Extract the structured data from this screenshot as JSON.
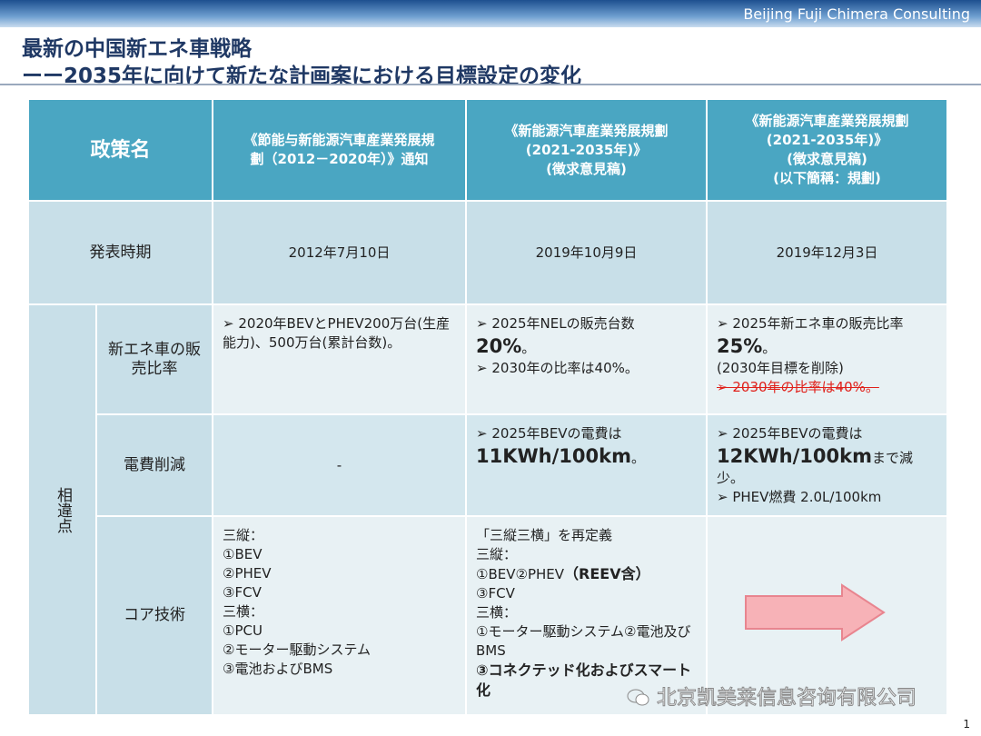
{
  "header": {
    "company": "Beijing Fuji Chimera Consulting",
    "title_lines": [
      "最新の中国新エネ車戦略",
      "ーー2035年に向けて新たな計画案における目標設定の変化"
    ]
  },
  "table": {
    "corner": "政策名",
    "group_label": "相違点",
    "columns": [
      [
        "《節能与新能源汽車産業発展規",
        "劃（2012－2020年）》通知"
      ],
      [
        "《新能源汽車産業発展規劃",
        "(2021-2035年)》",
        "(徴求意見稿)"
      ],
      [
        "《新能源汽車産業発展規劃",
        "(2021-2035年)》",
        "(徴求意見稿)",
        "(以下簡稱：規劃)"
      ]
    ],
    "rows": [
      {
        "label": "発表時期",
        "grouped": false,
        "align": "center",
        "cells": [
          [
            [
              {
                "text": "2012年7月10日"
              }
            ]
          ],
          [
            [
              {
                "text": "2019年10月9日"
              }
            ]
          ],
          [
            [
              {
                "text": "2019年12月3日"
              }
            ]
          ]
        ]
      },
      {
        "label": "新エネ車の販売比率",
        "grouped": true,
        "align": "left",
        "cells": [
          [
            [
              {
                "text": "➢ 2020年BEVとPHEV200万台(生産能力)、500万台(累計台数)。"
              }
            ]
          ],
          [
            [
              {
                "text": "➢ 2025年NELの販売台数"
              }
            ],
            [
              {
                "text": "20%",
                "style": "large"
              },
              {
                "text": "。"
              }
            ],
            [
              {
                "text": "➢ 2030年の比率は40%。"
              }
            ]
          ],
          [
            [
              {
                "text": "➢ 2025年新エネ車の販売比率"
              }
            ],
            [
              {
                "text": "25%",
                "style": "large"
              },
              {
                "text": "。"
              }
            ],
            [
              {
                "text": "(2030年目標を削除)"
              }
            ],
            [
              {
                "text": "➢ 2030年の比率は40%。",
                "style": "strike"
              }
            ]
          ]
        ]
      },
      {
        "label": "電費削減",
        "grouped": true,
        "align": "left",
        "cells": [
          [
            [
              {
                "text": "-"
              }
            ]
          ],
          [
            [
              {
                "text": "➢ 2025年BEVの電費は"
              }
            ],
            [
              {
                "text": "11KWh/100km",
                "style": "large"
              },
              {
                "text": "。"
              }
            ]
          ],
          [
            [
              {
                "text": "➢ 2025年BEVの電費は"
              }
            ],
            [
              {
                "text": "12KWh/100km",
                "style": "large"
              },
              {
                "text": "まで減少。"
              }
            ],
            [
              {
                "text": "➢ PHEV燃費 2.0L/100km"
              }
            ]
          ]
        ]
      },
      {
        "label": "コア技術",
        "grouped": true,
        "align": "left",
        "cells": [
          [
            [
              {
                "text": "三縦："
              }
            ],
            [
              {
                "text": "①BEV"
              }
            ],
            [
              {
                "text": "②PHEV"
              }
            ],
            [
              {
                "text": "③FCV"
              }
            ],
            [
              {
                "text": "三横："
              }
            ],
            [
              {
                "text": "①PCU"
              }
            ],
            [
              {
                "text": "②モーター駆動システム"
              }
            ],
            [
              {
                "text": "③電池およびBMS"
              }
            ]
          ],
          [
            [
              {
                "text": "「三縦三横」を再定義"
              }
            ],
            [
              {
                "text": "三縦："
              }
            ],
            [
              {
                "text": "①BEV②PHEV"
              },
              {
                "text": "（REEV含）",
                "style": "bold"
              }
            ],
            [
              {
                "text": "③FCV"
              }
            ],
            [
              {
                "text": "三横："
              }
            ],
            [
              {
                "text": "①モーター駆動システム②電池及びBMS"
              }
            ],
            [
              {
                "text": "③コネクテッド化およびスマート化",
                "style": "bold"
              }
            ]
          ],
          []
        ]
      }
    ]
  },
  "watermark": "北京凯美莱信息咨询有限公司",
  "page_number": "1"
}
